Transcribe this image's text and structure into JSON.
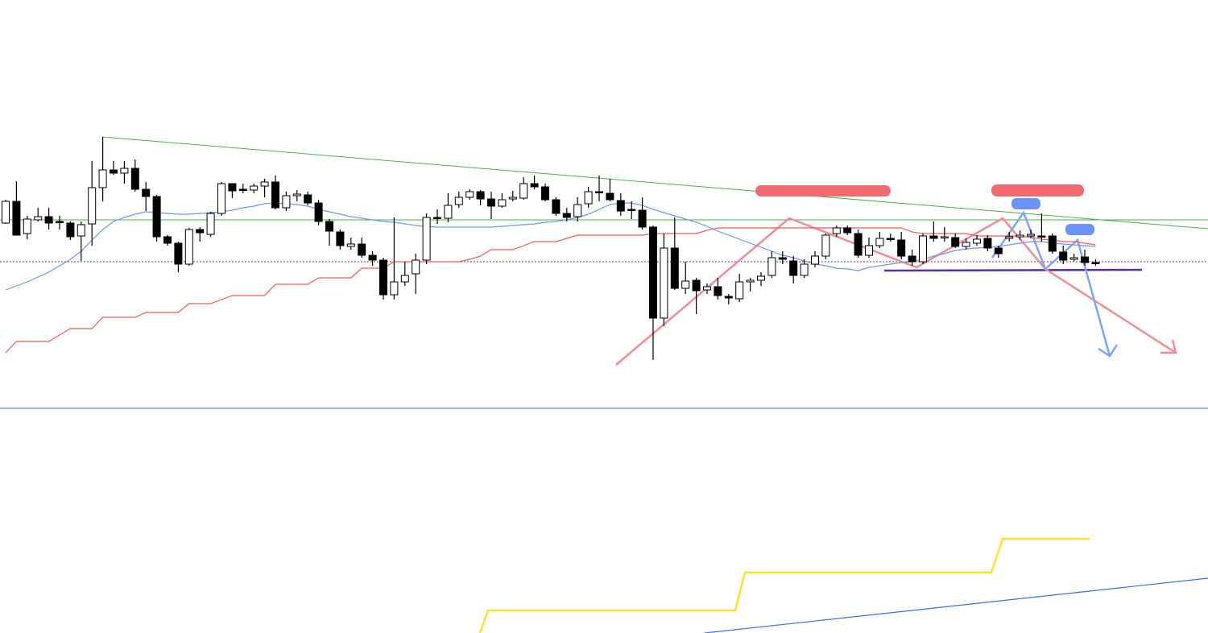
{
  "chart_data": {
    "type": "candlestick",
    "ylim": [
      0,
      786
    ],
    "up_color": "#ffffff",
    "down_color": "#000000",
    "ohlc": [
      [
        509,
        538,
        508,
        536
      ],
      [
        536,
        561,
        494,
        494
      ],
      [
        496,
        518,
        489,
        514
      ],
      [
        513,
        528,
        511,
        517
      ],
      [
        517,
        528,
        501,
        509
      ],
      [
        511,
        518,
        501,
        510
      ],
      [
        509,
        511,
        488,
        492
      ],
      [
        493,
        511,
        462,
        507
      ],
      [
        508,
        586,
        481,
        553
      ],
      [
        553,
        616,
        536,
        575
      ],
      [
        575,
        586,
        569,
        571
      ],
      [
        571,
        586,
        558,
        577
      ],
      [
        577,
        588,
        548,
        551
      ],
      [
        551,
        560,
        524,
        542
      ],
      [
        542,
        544,
        486,
        492
      ],
      [
        492,
        494,
        481,
        484
      ],
      [
        484,
        486,
        448,
        458
      ],
      [
        458,
        503,
        456,
        501
      ],
      [
        501,
        504,
        486,
        497
      ],
      [
        495,
        523,
        492,
        521
      ],
      [
        521,
        560,
        518,
        558
      ],
      [
        558,
        558,
        540,
        549
      ],
      [
        551,
        558,
        546,
        550
      ],
      [
        550,
        558,
        546,
        555
      ],
      [
        555,
        564,
        541,
        560
      ],
      [
        560,
        568,
        526,
        528
      ],
      [
        528,
        548,
        524,
        543
      ],
      [
        543,
        550,
        536,
        545
      ],
      [
        544,
        548,
        531,
        534
      ],
      [
        534,
        538,
        506,
        511
      ],
      [
        511,
        514,
        481,
        499
      ],
      [
        498,
        501,
        476,
        481
      ],
      [
        480,
        491,
        476,
        483
      ],
      [
        483,
        491,
        466,
        469
      ],
      [
        469,
        474,
        456,
        463
      ],
      [
        463,
        466,
        414,
        420
      ],
      [
        420,
        516,
        414,
        436
      ],
      [
        436,
        461,
        431,
        444
      ],
      [
        446,
        471,
        421,
        463
      ],
      [
        463,
        521,
        458,
        516
      ],
      [
        516,
        526,
        508,
        515
      ],
      [
        515,
        546,
        510,
        531
      ],
      [
        532,
        548,
        528,
        541
      ],
      [
        541,
        551,
        538,
        548
      ],
      [
        548,
        550,
        531,
        539
      ],
      [
        539,
        548,
        514,
        530
      ],
      [
        530,
        546,
        528,
        538
      ],
      [
        539,
        549,
        536,
        541
      ],
      [
        540,
        566,
        538,
        558
      ],
      [
        558,
        568,
        551,
        554
      ],
      [
        554,
        558,
        536,
        538
      ],
      [
        538,
        541,
        518,
        521
      ],
      [
        521,
        528,
        511,
        516
      ],
      [
        517,
        541,
        511,
        532
      ],
      [
        533,
        554,
        528,
        548
      ],
      [
        548,
        568,
        536,
        548
      ],
      [
        546,
        564,
        536,
        538
      ],
      [
        537,
        546,
        518,
        524
      ],
      [
        526,
        536,
        514,
        525
      ],
      [
        525,
        541,
        501,
        504
      ],
      [
        504,
        506,
        339,
        391
      ],
      [
        391,
        496,
        381,
        478
      ],
      [
        478,
        516,
        426,
        428
      ],
      [
        428,
        461,
        421,
        437
      ],
      [
        438,
        441,
        396,
        425
      ],
      [
        426,
        434,
        421,
        430
      ],
      [
        430,
        441,
        414,
        419
      ],
      [
        418,
        421,
        408,
        416
      ],
      [
        415,
        446,
        411,
        436
      ],
      [
        436,
        441,
        424,
        438
      ],
      [
        438,
        448,
        431,
        443
      ],
      [
        444,
        474,
        441,
        466
      ],
      [
        466,
        474,
        458,
        464
      ],
      [
        462,
        468,
        434,
        444
      ],
      [
        444,
        464,
        441,
        458
      ],
      [
        458,
        474,
        454,
        468
      ],
      [
        468,
        496,
        464,
        494
      ],
      [
        496,
        506,
        492,
        503
      ],
      [
        503,
        506,
        494,
        497
      ],
      [
        496,
        501,
        466,
        469
      ],
      [
        469,
        491,
        466,
        481
      ],
      [
        481,
        498,
        478,
        490
      ],
      [
        490,
        496,
        486,
        489
      ],
      [
        488,
        498,
        464,
        468
      ],
      [
        468,
        476,
        456,
        461
      ],
      [
        461,
        496,
        458,
        493
      ],
      [
        493,
        511,
        486,
        490
      ],
      [
        491,
        504,
        486,
        492
      ],
      [
        491,
        496,
        478,
        480
      ],
      [
        480,
        490,
        476,
        485
      ],
      [
        484,
        494,
        481,
        489
      ],
      [
        490,
        494,
        474,
        478
      ],
      [
        478,
        481,
        466,
        471
      ],
      [
        490,
        498,
        486,
        492
      ],
      [
        492,
        500,
        488,
        494
      ],
      [
        493,
        501,
        490,
        495
      ],
      [
        493,
        521,
        486,
        493
      ],
      [
        493,
        496,
        471,
        474
      ],
      [
        473,
        481,
        458,
        463
      ],
      [
        464,
        471,
        462,
        466
      ],
      [
        467,
        476,
        456,
        460
      ],
      [
        460,
        464,
        456,
        459
      ]
    ],
    "series": [
      {
        "color": "#6e96f0",
        "values": [
          426,
          431,
          436,
          442,
          448,
          456,
          464,
          474,
          488,
          501,
          511,
          516,
          520,
          523,
          522,
          521,
          520,
          520,
          521,
          522,
          523,
          525,
          528,
          530,
          533,
          534,
          533,
          532,
          530,
          526,
          523,
          520,
          517,
          515,
          513,
          511,
          510,
          508,
          506,
          505,
          504,
          504,
          504,
          504,
          504,
          504,
          505,
          506,
          507,
          508,
          510,
          511,
          513,
          516,
          520,
          526,
          532,
          534,
          534,
          531,
          526,
          522,
          518,
          514,
          510,
          505,
          499,
          494,
          489,
          484,
          479,
          474,
          469,
          466,
          462,
          458,
          456,
          453,
          452,
          450,
          454,
          456,
          458,
          460,
          461,
          464,
          468,
          471,
          475,
          477,
          478,
          479,
          480,
          482,
          484,
          486,
          486,
          484,
          483,
          482,
          481,
          480
        ]
      },
      {
        "color": "#f05a5a",
        "values": [
          348,
          362,
          362,
          362,
          362,
          370,
          378,
          378,
          378,
          392,
          392,
          392,
          392,
          398,
          398,
          398,
          398,
          409,
          409,
          409,
          414,
          419,
          419,
          419,
          419,
          433,
          433,
          433,
          433,
          441,
          441,
          441,
          441,
          453,
          453,
          453,
          461,
          461,
          461,
          461,
          461,
          461,
          461,
          464,
          468,
          476,
          476,
          476,
          481,
          486,
          486,
          486,
          490,
          494,
          494,
          494,
          494,
          494,
          494,
          494,
          496,
          496,
          496,
          496,
          496,
          500,
          503,
          503,
          503,
          503,
          503,
          503,
          503,
          503,
          503,
          503,
          503,
          503,
          503,
          503,
          503,
          503,
          503,
          503,
          498,
          496,
          496,
          496,
          496,
          496,
          493,
          493,
          493,
          493,
          493,
          491,
          489,
          488,
          486,
          486,
          484,
          482
        ]
      }
    ]
  }
}
